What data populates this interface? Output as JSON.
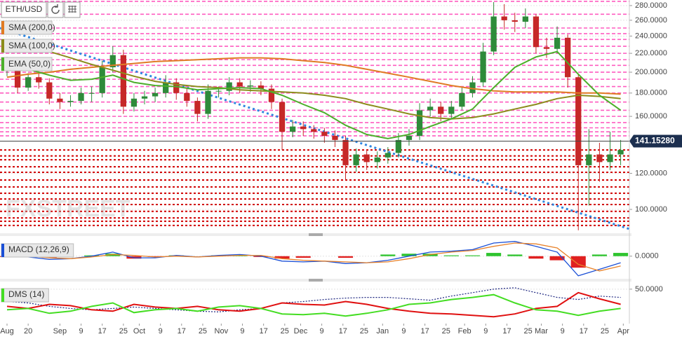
{
  "toolbar": {
    "symbol": "ETH/USD"
  },
  "watermark": "FXSTREET",
  "chart_data": [
    {
      "type": "candlestick",
      "log_scale": true,
      "up_color": "#2e8b3a",
      "down_color": "#c62828",
      "x": [
        0,
        4,
        8,
        12,
        16,
        20,
        24,
        28,
        32,
        36,
        40,
        44,
        48,
        52,
        56,
        60,
        64,
        68,
        72,
        76,
        80,
        84,
        88,
        92,
        96,
        100,
        104,
        108,
        112,
        116,
        120,
        124,
        128,
        132,
        136,
        140,
        144,
        148,
        152,
        156,
        160,
        164,
        168,
        172,
        176,
        180,
        184,
        188,
        192,
        196,
        200,
        204,
        208,
        212,
        216,
        220,
        224,
        228,
        232
      ],
      "open": [
        205,
        210,
        185,
        195,
        190,
        175,
        172,
        173,
        180,
        180,
        205,
        218,
        168,
        175,
        177,
        180,
        190,
        180,
        173,
        162,
        182,
        182,
        190,
        186,
        187,
        184,
        172,
        148,
        152,
        150,
        148,
        145,
        142,
        125,
        132,
        127,
        130,
        133,
        142,
        145,
        165,
        168,
        162,
        168,
        180,
        190,
        222,
        265,
        260,
        258,
        265,
        227,
        225,
        238,
        195,
        125,
        132,
        127,
        132
      ],
      "high": [
        216,
        214,
        199,
        201,
        194,
        180,
        178,
        185,
        186,
        212,
        228,
        224,
        180,
        182,
        185,
        197,
        194,
        184,
        176,
        188,
        186,
        195,
        194,
        192,
        191,
        188,
        175,
        157,
        156,
        153,
        151,
        149,
        145,
        136,
        135,
        134,
        137,
        147,
        150,
        171,
        175,
        172,
        173,
        185,
        196,
        232,
        285,
        282,
        270,
        276,
        268,
        238,
        252,
        242,
        198,
        150,
        140,
        148,
        142
      ],
      "low": [
        196,
        180,
        182,
        184,
        170,
        166,
        168,
        170,
        172,
        176,
        200,
        162,
        164,
        170,
        172,
        176,
        174,
        168,
        156,
        158,
        176,
        178,
        180,
        181,
        178,
        166,
        135,
        144,
        145,
        143,
        140,
        137,
        116,
        121,
        122,
        123,
        126,
        130,
        138,
        142,
        160,
        156,
        158,
        165,
        176,
        186,
        218,
        248,
        245,
        250,
        220,
        215,
        220,
        185,
        90,
        102,
        115,
        122,
        125
      ],
      "close": [
        210,
        185,
        195,
        190,
        175,
        172,
        173,
        180,
        180,
        205,
        218,
        168,
        175,
        177,
        180,
        190,
        180,
        173,
        162,
        182,
        182,
        190,
        186,
        187,
        184,
        172,
        148,
        152,
        150,
        148,
        145,
        142,
        125,
        132,
        127,
        130,
        133,
        142,
        145,
        165,
        168,
        162,
        168,
        180,
        190,
        222,
        265,
        260,
        258,
        265,
        227,
        225,
        238,
        195,
        125,
        132,
        127,
        132,
        135
      ],
      "xlim": [
        -2.65,
        235.3
      ],
      "xticks": [
        {
          "value": 0,
          "label": "Aug"
        },
        {
          "value": 8,
          "label": "20"
        },
        {
          "value": 20,
          "label": "Sep"
        },
        {
          "value": 28,
          "label": "9"
        },
        {
          "value": 36,
          "label": "17"
        },
        {
          "value": 44,
          "label": "25"
        },
        {
          "value": 50,
          "label": "Oct"
        },
        {
          "value": 58,
          "label": "9"
        },
        {
          "value": 66,
          "label": "17"
        },
        {
          "value": 74,
          "label": "25"
        },
        {
          "value": 81,
          "label": "Nov"
        },
        {
          "value": 89,
          "label": "9"
        },
        {
          "value": 97,
          "label": "17"
        },
        {
          "value": 105,
          "label": "25"
        },
        {
          "value": 111,
          "label": "Dec"
        },
        {
          "value": 119,
          "label": "9"
        },
        {
          "value": 127,
          "label": "17"
        },
        {
          "value": 135,
          "label": "25"
        },
        {
          "value": 142,
          "label": "Jan"
        },
        {
          "value": 150,
          "label": "9"
        },
        {
          "value": 158,
          "label": "17"
        },
        {
          "value": 166,
          "label": "25"
        },
        {
          "value": 173,
          "label": "Feb"
        },
        {
          "value": 181,
          "label": "9"
        },
        {
          "value": 189,
          "label": "17"
        },
        {
          "value": 197,
          "label": "25"
        },
        {
          "value": 202,
          "label": "Mar"
        },
        {
          "value": 210,
          "label": "9"
        },
        {
          "value": 218,
          "label": "17"
        },
        {
          "value": 226,
          "label": "25"
        },
        {
          "value": 233,
          "label": "Apr"
        }
      ],
      "ylim": [
        89.6,
        288
      ],
      "yticks": [
        {
          "value": 280,
          "label": "280.0000"
        },
        {
          "value": 260,
          "label": "260.0000"
        },
        {
          "value": 240,
          "label": "240.0000"
        },
        {
          "value": 220,
          "label": "220.0000"
        },
        {
          "value": 200,
          "label": "200.0000"
        },
        {
          "value": 180,
          "label": "180.0000"
        },
        {
          "value": 160,
          "label": "160.0000"
        },
        {
          "value": 120,
          "label": "120.0000"
        },
        {
          "value": 100,
          "label": "100.0000"
        }
      ],
      "last_price": {
        "value": 141.1528,
        "label": "141.15280",
        "color": "#1c2f4f"
      },
      "overlays": [
        {
          "name": "SMA (200,0)",
          "color": "#e07b24",
          "x": [
            0,
            8,
            16,
            24,
            32,
            40,
            48,
            56,
            64,
            72,
            80,
            88,
            96,
            104,
            112,
            120,
            128,
            136,
            144,
            152,
            160,
            168,
            176,
            184,
            192,
            200,
            208,
            216,
            224,
            232
          ],
          "values": [
            195,
            198,
            200,
            203,
            205,
            207,
            209,
            211,
            212,
            213,
            214,
            215,
            215,
            214,
            212,
            210,
            207,
            203,
            199,
            195,
            191,
            187,
            184,
            182,
            181,
            181,
            181,
            180,
            180,
            179
          ]
        },
        {
          "name": "SMA (100,0)",
          "color": "#8c8c1c",
          "x": [
            0,
            8,
            16,
            24,
            32,
            40,
            48,
            56,
            64,
            72,
            80,
            88,
            96,
            104,
            112,
            120,
            128,
            136,
            144,
            152,
            160,
            168,
            176,
            184,
            192,
            200,
            208,
            216,
            224,
            232
          ],
          "values": [
            228,
            226,
            222,
            215,
            208,
            202,
            196,
            191,
            188,
            186,
            185,
            183,
            182,
            181,
            180,
            178,
            175,
            170,
            166,
            162,
            159,
            158,
            159,
            162,
            166,
            170,
            175,
            178,
            177,
            175
          ]
        },
        {
          "name": "EMA (50,0)",
          "color": "#4caf2a",
          "x": [
            0,
            8,
            16,
            24,
            32,
            40,
            48,
            56,
            64,
            72,
            80,
            88,
            96,
            104,
            112,
            120,
            128,
            136,
            144,
            152,
            160,
            168,
            176,
            184,
            192,
            200,
            208,
            216,
            224,
            232
          ],
          "values": [
            208,
            203,
            197,
            192,
            193,
            197,
            190,
            187,
            186,
            183,
            184,
            185,
            184,
            178,
            170,
            163,
            153,
            146,
            143,
            146,
            152,
            158,
            166,
            185,
            205,
            216,
            222,
            198,
            178,
            165
          ]
        }
      ],
      "levels": {
        "resistance": {
          "color": "#ff5cc0",
          "values": [
            286,
            268,
            250,
            243,
            236,
            228,
            220,
            213,
            207,
            200,
            193,
            186,
            180,
            172,
            165,
            160,
            155,
            151,
            148,
            145
          ]
        },
        "support": {
          "color": "#d00000",
          "values": [
            135,
            131,
            128.5,
            124,
            120.6,
            116,
            112,
            108.5,
            105.4,
            102.5,
            99,
            95.8,
            94.2,
            92.2
          ]
        }
      },
      "trendline": {
        "color": "#2f86e0",
        "x": [
          -2.65,
          235.3
        ],
        "values": [
          250,
          90.6
        ]
      }
    },
    {
      "type": "macd",
      "name": "MACD (12,26,9)",
      "color": "#1a4fd6",
      "x": [
        0,
        8,
        16,
        24,
        32,
        40,
        48,
        56,
        64,
        72,
        80,
        88,
        96,
        104,
        112,
        120,
        128,
        136,
        144,
        152,
        160,
        168,
        176,
        184,
        192,
        200,
        208,
        216,
        224,
        232
      ],
      "series": [
        {
          "color": "#1a4fd6",
          "values": [
            2,
            -1,
            -4,
            -3,
            0,
            5,
            -2,
            -2,
            1,
            -1,
            1,
            2,
            0,
            -6,
            -7,
            -6,
            -9,
            -8,
            -5,
            0,
            5,
            6,
            8,
            16,
            18,
            12,
            5,
            -24,
            -16,
            -8
          ]
        },
        {
          "color": "#e8822a",
          "values": [
            3,
            0,
            -2,
            -3,
            -1,
            2,
            1,
            -1,
            0,
            -1,
            0,
            1,
            1,
            -3,
            -5,
            -6,
            -7,
            -8,
            -7,
            -3,
            2,
            5,
            7,
            12,
            16,
            15,
            10,
            -10,
            -18,
            -12
          ]
        }
      ],
      "histogram": {
        "up_color": "#2fc42f",
        "down_color": "#e02020",
        "values": [
          -1,
          -1,
          -2,
          0,
          1,
          3,
          -3,
          -1,
          1,
          0,
          1,
          1,
          -1,
          -3,
          -2,
          0,
          -2,
          0,
          2,
          3,
          3,
          1,
          1,
          4,
          2,
          -3,
          -5,
          -14,
          2,
          4
        ]
      },
      "ylim": [
        -25,
        22
      ],
      "yticks": [
        {
          "value": 0,
          "label": "0.0000"
        }
      ]
    },
    {
      "type": "dms",
      "name": "DMS (14)",
      "color": "#44dd22",
      "x": [
        0,
        8,
        16,
        24,
        32,
        40,
        48,
        56,
        64,
        72,
        80,
        88,
        96,
        104,
        112,
        120,
        128,
        136,
        144,
        152,
        160,
        168,
        176,
        184,
        192,
        200,
        208,
        216,
        224,
        232
      ],
      "series": [
        {
          "color": "#1a237e",
          "dashed": true,
          "values": [
            32,
            30,
            25,
            22,
            20,
            22,
            24,
            22,
            20,
            18,
            17,
            20,
            22,
            30,
            32,
            35,
            37,
            38,
            38,
            36,
            34,
            40,
            45,
            50,
            52,
            45,
            38,
            35,
            40,
            38
          ]
        },
        {
          "color": "#e01010",
          "values": [
            25,
            22,
            28,
            26,
            20,
            18,
            28,
            24,
            22,
            25,
            20,
            18,
            22,
            30,
            28,
            27,
            32,
            28,
            22,
            18,
            15,
            14,
            12,
            10,
            14,
            22,
            25,
            45,
            36,
            28
          ]
        },
        {
          "color": "#44dd22",
          "values": [
            20,
            22,
            15,
            18,
            25,
            30,
            16,
            20,
            22,
            18,
            24,
            26,
            22,
            14,
            13,
            15,
            11,
            15,
            20,
            28,
            30,
            35,
            38,
            42,
            30,
            20,
            18,
            12,
            18,
            22
          ]
        }
      ],
      "ylim": [
        0,
        59
      ],
      "yticks": [
        {
          "value": 50,
          "label": "50.0000"
        }
      ]
    }
  ]
}
